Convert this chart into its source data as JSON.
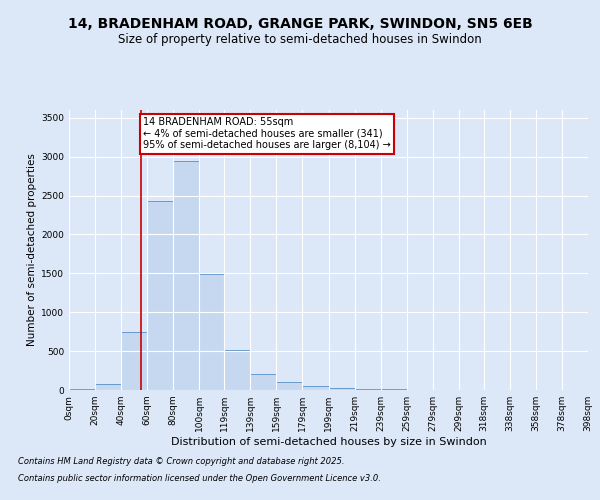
{
  "title_line1": "14, BRADENHAM ROAD, GRANGE PARK, SWINDON, SN5 6EB",
  "title_line2": "Size of property relative to semi-detached houses in Swindon",
  "xlabel": "Distribution of semi-detached houses by size in Swindon",
  "ylabel": "Number of semi-detached properties",
  "annotation_title": "14 BRADENHAM ROAD: 55sqm",
  "annotation_line2": "← 4% of semi-detached houses are smaller (341)",
  "annotation_line3": "95% of semi-detached houses are larger (8,104) →",
  "footer_line1": "Contains HM Land Registry data © Crown copyright and database right 2025.",
  "footer_line2": "Contains public sector information licensed under the Open Government Licence v3.0.",
  "bar_edges": [
    0,
    20,
    40,
    60,
    80,
    100,
    119,
    139,
    159,
    179,
    199,
    219,
    239,
    259,
    279,
    299,
    318,
    338,
    358,
    378,
    398
  ],
  "bar_heights": [
    10,
    80,
    750,
    2430,
    2950,
    1490,
    510,
    210,
    100,
    50,
    30,
    15,
    10,
    5,
    5,
    3,
    3,
    3,
    3,
    3
  ],
  "tick_labels": [
    "0sqm",
    "20sqm",
    "40sqm",
    "60sqm",
    "80sqm",
    "100sqm",
    "119sqm",
    "139sqm",
    "159sqm",
    "179sqm",
    "199sqm",
    "219sqm",
    "239sqm",
    "259sqm",
    "279sqm",
    "299sqm",
    "318sqm",
    "338sqm",
    "358sqm",
    "378sqm",
    "398sqm"
  ],
  "bar_facecolor": "#c5d8f0",
  "bar_edgecolor": "#6699cc",
  "redline_x": 55,
  "ylim": [
    0,
    3600
  ],
  "yticks": [
    0,
    500,
    1000,
    1500,
    2000,
    2500,
    3000,
    3500
  ],
  "bg_color": "#dce8f8",
  "plot_bg_color": "#dce8f8",
  "grid_color": "#ffffff",
  "annotation_box_edgecolor": "#cc0000",
  "annotation_box_facecolor": "#ffffff",
  "redline_color": "#cc0000",
  "title_fontsize": 10,
  "subtitle_fontsize": 8.5,
  "ylabel_fontsize": 7.5,
  "xlabel_fontsize": 8,
  "tick_fontsize": 6.5,
  "footer_fontsize": 6
}
